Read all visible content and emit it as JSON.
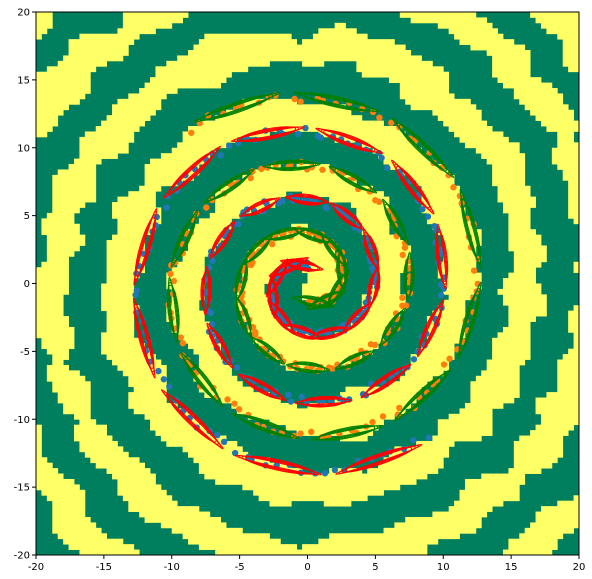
{
  "chart_data": {
    "type": "scatter",
    "title": "",
    "xlabel": "",
    "ylabel": "",
    "xlim": [
      -20,
      20
    ],
    "ylim": [
      -20,
      20
    ],
    "xticks": [
      -20,
      -15,
      -10,
      -5,
      0,
      5,
      10,
      15,
      20
    ],
    "yticks": [
      -20,
      -15,
      -10,
      -5,
      0,
      5,
      10,
      15,
      20
    ],
    "grid": false,
    "legend": "none",
    "background_regions": {
      "class_colors": [
        "#007f5f",
        "#ffff66"
      ],
      "description_note": "decision regions of two classes filling the plot"
    },
    "series": [
      {
        "color": "#1f77b4",
        "spiral": {
          "turns": 2.6,
          "r_start": 1.2,
          "r_end": 14.2,
          "theta_start": 1.6
        }
      },
      {
        "color": "#ff7f0e",
        "spiral": {
          "turns": 2.6,
          "r_start": 1.2,
          "r_end": 14.2,
          "theta_start": 4.74
        }
      }
    ],
    "ellipses": [
      {
        "color": "#ff0000",
        "series": 0,
        "count": 30
      },
      {
        "color": "#008000",
        "series": 1,
        "count": 30
      }
    ],
    "colors": {
      "class_a": "#007f5f",
      "class_b": "#ffff66",
      "blue_points": "#1f77b4",
      "orange_points": "#ff7f0e",
      "red_ellipse": "#ff0000",
      "green_ellipse": "#008000"
    }
  }
}
